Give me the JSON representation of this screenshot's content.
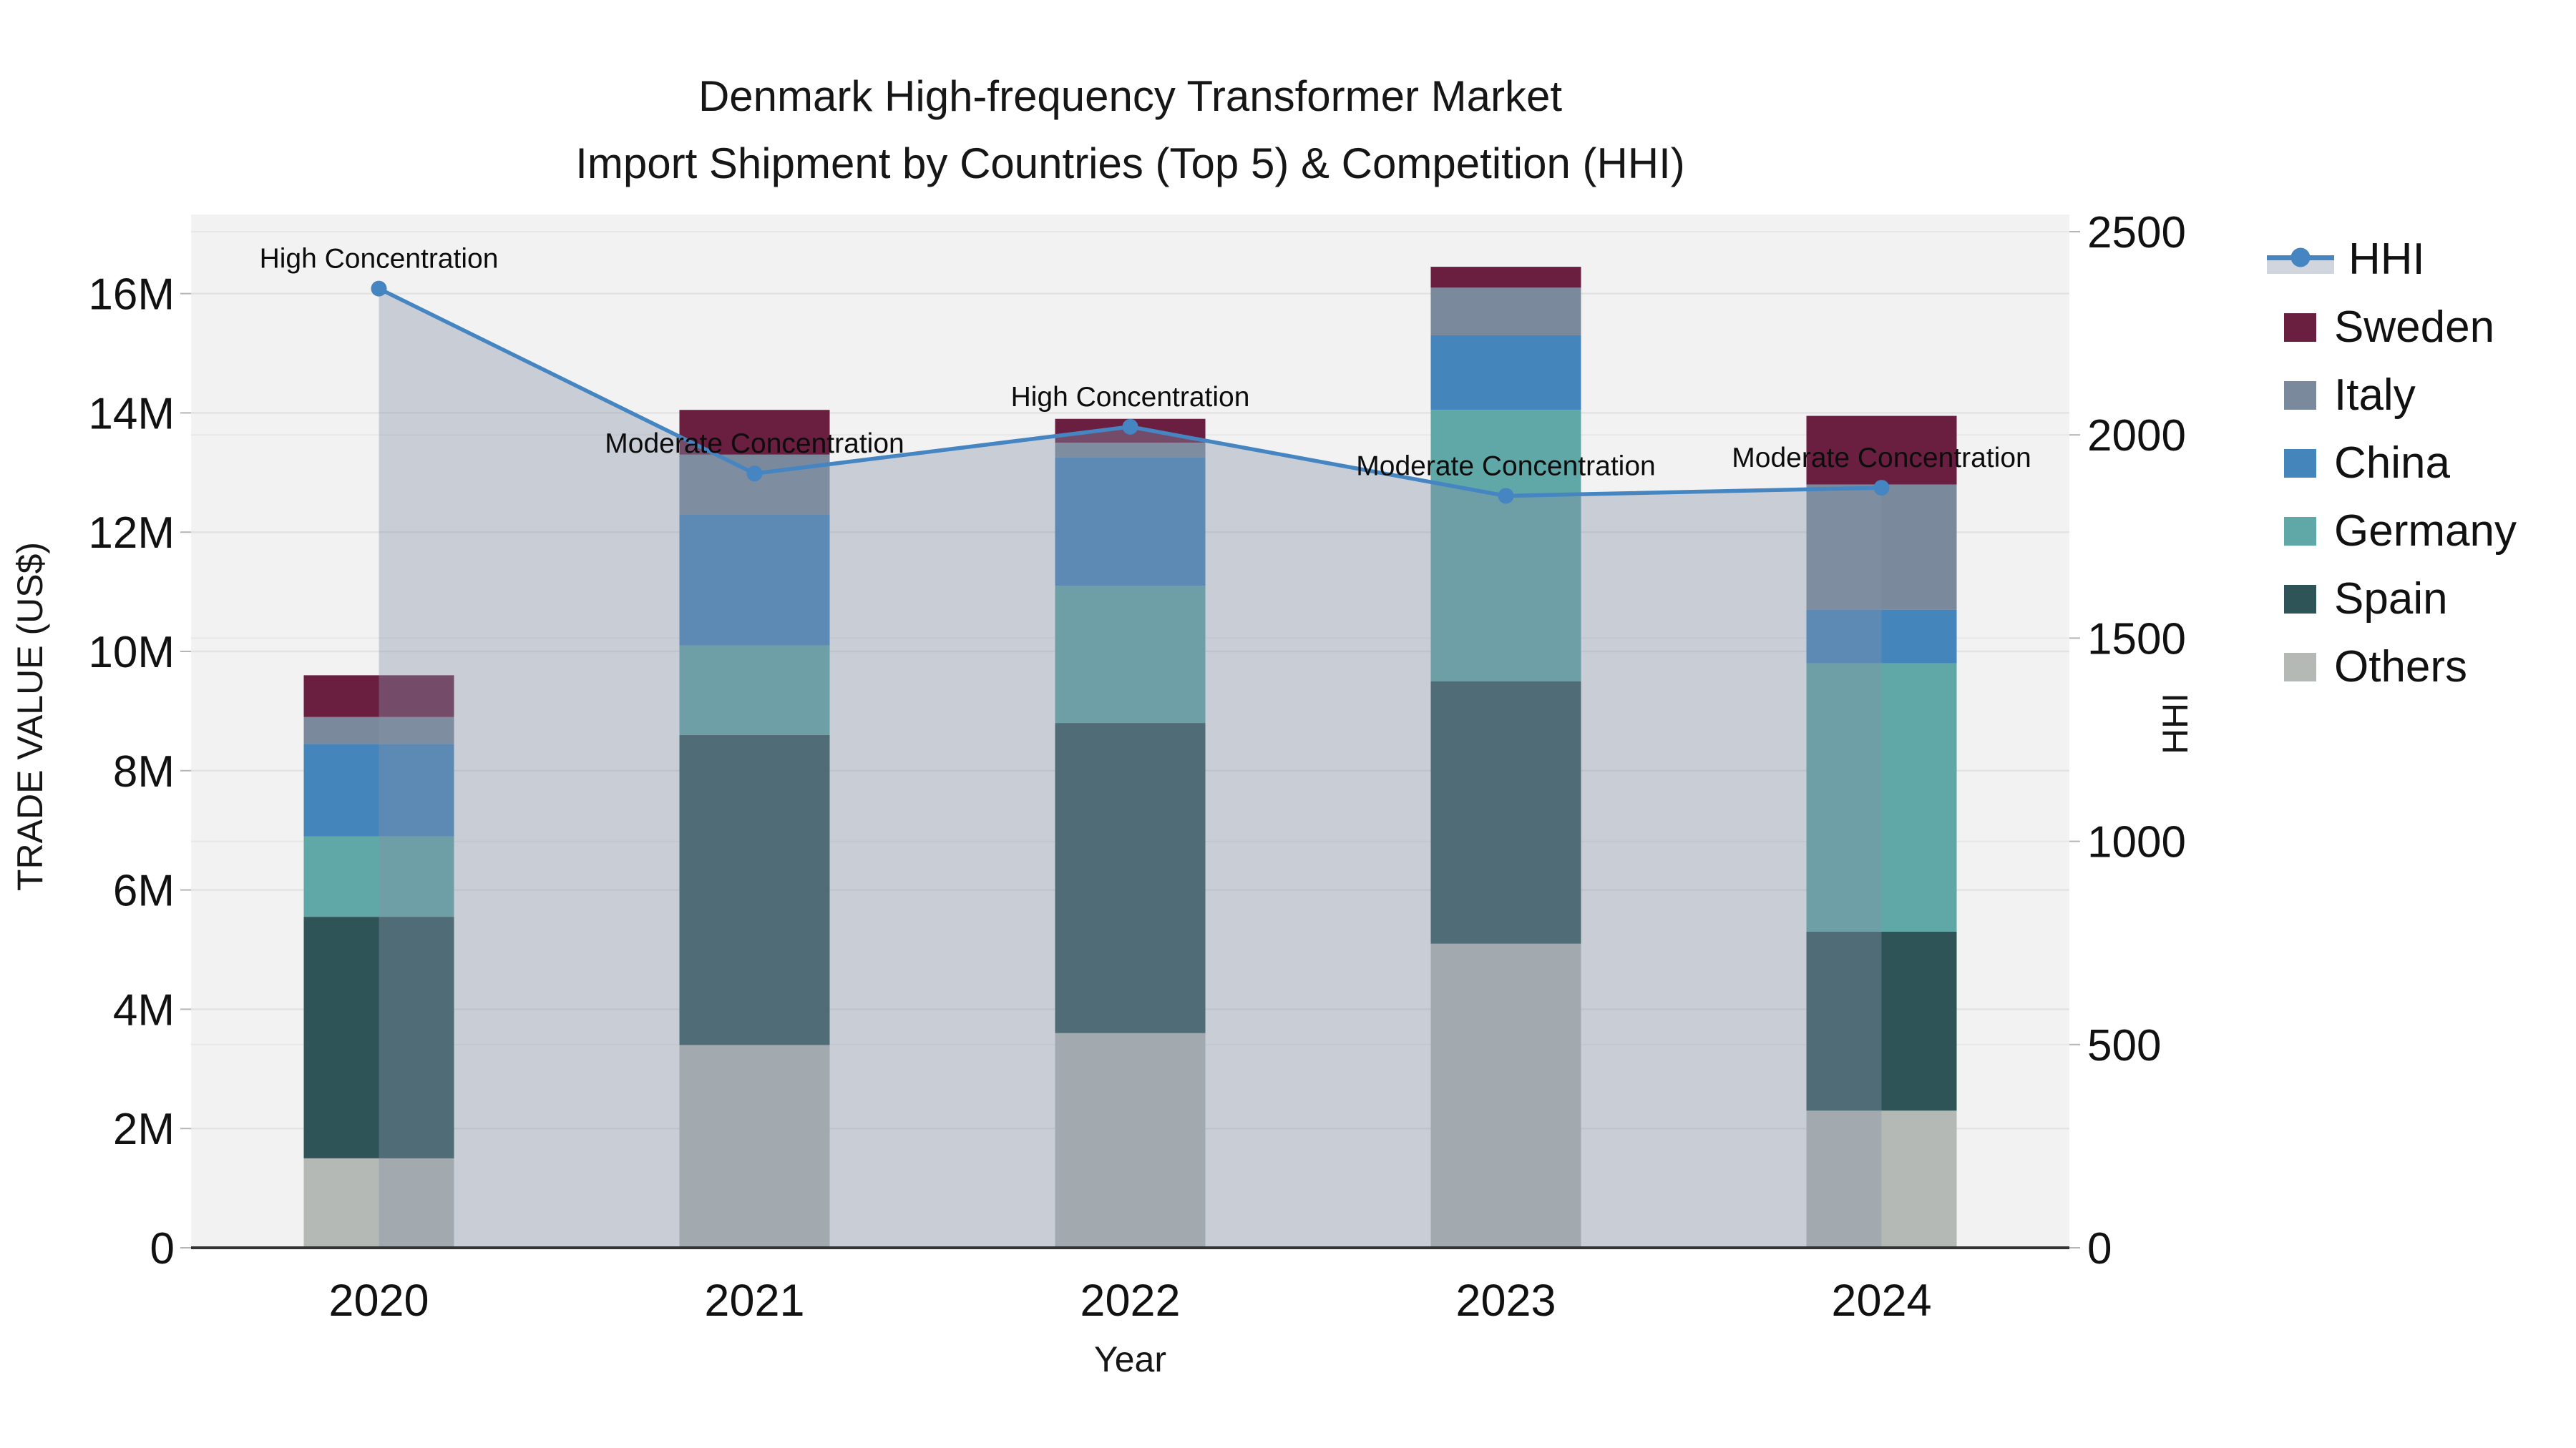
{
  "title": {
    "line1": "Denmark High-frequency Transformer Market",
    "line2": "Import Shipment by Countries (Top 5) & Competition (HHI)"
  },
  "axes": {
    "x_title": "Year",
    "y_left_title": "TRADE VALUE (US$)",
    "y_right_title": "HHI",
    "x_ticks": [
      "2020",
      "2021",
      "2022",
      "2023",
      "2024"
    ],
    "y_left_ticks": [
      {
        "value": 0,
        "label": "0"
      },
      {
        "value": 2,
        "label": "2M"
      },
      {
        "value": 4,
        "label": "4M"
      },
      {
        "value": 6,
        "label": "6M"
      },
      {
        "value": 8,
        "label": "8M"
      },
      {
        "value": 10,
        "label": "10M"
      },
      {
        "value": 12,
        "label": "12M"
      },
      {
        "value": 14,
        "label": "14M"
      },
      {
        "value": 16,
        "label": "16M"
      }
    ],
    "y_right_ticks": [
      {
        "value": 0,
        "label": "0"
      },
      {
        "value": 500,
        "label": "500"
      },
      {
        "value": 1000,
        "label": "1000"
      },
      {
        "value": 1500,
        "label": "1500"
      },
      {
        "value": 2000,
        "label": "2000"
      },
      {
        "value": 2500,
        "label": "2500"
      }
    ]
  },
  "legend": {
    "items": [
      {
        "label": "HHI",
        "type": "line",
        "color": "#4585c1"
      },
      {
        "label": "Sweden",
        "type": "square",
        "color": "#6a1f41"
      },
      {
        "label": "Italy",
        "type": "square",
        "color": "#7a8a9c"
      },
      {
        "label": "China",
        "type": "square",
        "color": "#4485bc"
      },
      {
        "label": "Germany",
        "type": "square",
        "color": "#60a7a7"
      },
      {
        "label": "Spain",
        "type": "square",
        "color": "#2f5458"
      },
      {
        "label": "Others",
        "type": "square",
        "color": "#b4b9b5"
      }
    ]
  },
  "chart_data": {
    "type": "stacked-bar+line",
    "title": "Denmark High-frequency Transformer Market Import Shipment by Countries (Top 5) & Competition (HHI)",
    "xlabel": "Year",
    "ylabel_left": "TRADE VALUE (US$)",
    "ylabel_right": "HHI",
    "categories": [
      "2020",
      "2021",
      "2022",
      "2023",
      "2024"
    ],
    "value_unit": "US$ millions",
    "ylim_left": [
      0,
      17.4
    ],
    "ylim_right": [
      0,
      2550
    ],
    "grid": true,
    "legend_position": "right",
    "series": [
      {
        "name": "Others",
        "color": "#b4b9b5",
        "values": [
          1.5,
          3.4,
          3.6,
          5.1,
          2.3
        ]
      },
      {
        "name": "Spain",
        "color": "#2f5458",
        "values": [
          4.05,
          5.2,
          5.2,
          4.4,
          3.0
        ]
      },
      {
        "name": "Germany",
        "color": "#60a7a7",
        "values": [
          1.35,
          1.5,
          2.3,
          4.55,
          4.5
        ]
      },
      {
        "name": "China",
        "color": "#4485bc",
        "values": [
          1.55,
          2.2,
          2.15,
          1.25,
          0.9
        ]
      },
      {
        "name": "Italy",
        "color": "#7a8a9c",
        "values": [
          0.45,
          1.0,
          0.25,
          0.8,
          2.1
        ]
      },
      {
        "name": "Sweden",
        "color": "#6a1f41",
        "values": [
          0.7,
          0.75,
          0.4,
          0.35,
          1.15
        ]
      }
    ],
    "bar_totals": [
      9.6,
      14.05,
      13.9,
      16.45,
      13.95
    ],
    "hhi_line": {
      "name": "HHI",
      "color": "#4585c1",
      "area_fill": "rgba(133,146,168,0.38)",
      "values": [
        2360,
        1905,
        2020,
        1850,
        1870
      ]
    },
    "annotations": [
      {
        "year": "2020",
        "label": "High Concentration"
      },
      {
        "year": "2021",
        "label": "Moderate Concentration"
      },
      {
        "year": "2022",
        "label": "High Concentration"
      },
      {
        "year": "2023",
        "label": "Moderate Concentration"
      },
      {
        "year": "2024",
        "label": "Moderate Concentration"
      }
    ]
  }
}
